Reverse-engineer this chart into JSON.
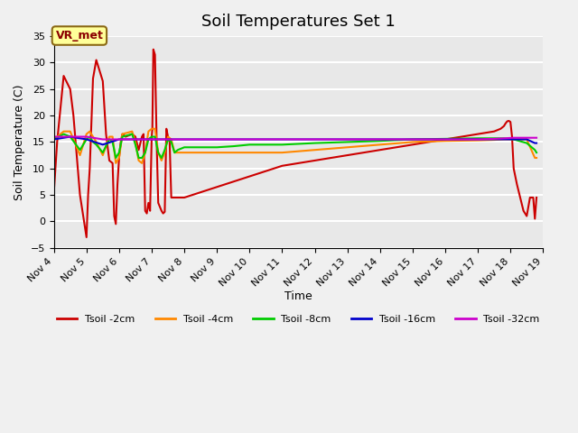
{
  "title": "Soil Temperatures Set 1",
  "xlabel": "Time",
  "ylabel": "Soil Temperature (C)",
  "ylim": [
    -5,
    35
  ],
  "xlim": [
    4,
    19
  ],
  "background_color": "#e8e8e8",
  "grid_color": "#ffffff",
  "annotation_label": "VR_met",
  "annotation_box_color": "#ffff99",
  "annotation_border_color": "#8B6914",
  "series": [
    {
      "name": "Tsoil -2cm",
      "color": "#cc0000",
      "x": [
        4.0,
        4.1,
        4.3,
        4.5,
        4.6,
        4.8,
        5.0,
        5.05,
        5.1,
        5.2,
        5.3,
        5.5,
        5.6,
        5.7,
        5.8,
        5.85,
        5.9,
        5.95,
        6.0,
        6.05,
        6.1,
        6.2,
        6.4,
        6.5,
        6.6,
        6.7,
        6.75,
        6.8,
        6.85,
        6.9,
        6.95,
        7.0,
        7.02,
        7.05,
        7.1,
        7.15,
        7.2,
        7.3,
        7.35,
        7.4,
        7.45,
        7.5,
        7.55,
        7.6,
        7.7,
        7.8,
        8.0,
        8.5,
        9.0,
        9.5,
        10.0,
        10.5,
        11.0,
        11.5,
        12.0,
        12.5,
        13.0,
        13.5,
        14.0,
        14.5,
        15.0,
        15.5,
        16.0,
        16.5,
        17.0,
        17.5,
        17.7,
        17.8,
        17.85,
        17.9,
        17.95,
        18.0,
        18.05,
        18.1,
        18.2,
        18.3,
        18.4,
        18.5,
        18.6,
        18.7,
        18.75,
        18.8
      ],
      "y": [
        5.5,
        15.0,
        27.5,
        25.0,
        20.0,
        5.0,
        -3.0,
        5.0,
        10.0,
        27.0,
        30.5,
        26.5,
        16.5,
        11.5,
        11.0,
        1.0,
        -0.5,
        7.0,
        12.0,
        15.0,
        16.5,
        16.0,
        16.5,
        16.0,
        13.5,
        16.0,
        16.5,
        2.0,
        1.5,
        3.5,
        2.0,
        16.0,
        17.5,
        32.5,
        31.5,
        15.5,
        3.5,
        2.0,
        1.5,
        1.8,
        17.5,
        16.0,
        15.0,
        4.5,
        4.5,
        4.5,
        4.5,
        5.5,
        6.5,
        7.5,
        8.5,
        9.5,
        10.5,
        11.0,
        11.5,
        12.0,
        12.5,
        13.0,
        13.5,
        14.0,
        14.5,
        15.0,
        15.5,
        16.0,
        16.5,
        17.0,
        17.5,
        18.0,
        18.5,
        18.9,
        19.0,
        18.8,
        16.0,
        10.0,
        7.0,
        4.5,
        2.0,
        1.0,
        4.5,
        4.5,
        0.5,
        4.5
      ]
    },
    {
      "name": "Tsoil -4cm",
      "color": "#ff8800",
      "x": [
        4.0,
        4.3,
        4.5,
        4.8,
        5.0,
        5.1,
        5.2,
        5.3,
        5.5,
        5.7,
        5.8,
        5.9,
        6.0,
        6.1,
        6.4,
        6.5,
        6.6,
        6.7,
        6.8,
        6.9,
        7.0,
        7.1,
        7.2,
        7.3,
        7.4,
        7.5,
        7.6,
        7.7,
        7.8,
        8.0,
        8.5,
        9.0,
        9.5,
        10.0,
        11.0,
        12.0,
        13.0,
        14.0,
        15.0,
        16.0,
        17.0,
        17.5,
        17.8,
        18.1,
        18.5,
        18.75,
        18.8
      ],
      "y": [
        15.5,
        17.0,
        17.0,
        12.5,
        16.5,
        17.0,
        16.0,
        15.0,
        12.5,
        16.0,
        16.0,
        11.0,
        12.0,
        16.5,
        17.0,
        15.0,
        11.5,
        11.0,
        13.0,
        17.0,
        17.5,
        17.5,
        13.0,
        11.5,
        13.0,
        16.0,
        15.5,
        13.0,
        13.0,
        13.0,
        13.0,
        13.0,
        13.0,
        13.0,
        13.0,
        13.5,
        14.0,
        14.5,
        15.0,
        15.2,
        15.3,
        15.4,
        15.5,
        15.5,
        15.5,
        12.0,
        12.0
      ]
    },
    {
      "name": "Tsoil -8cm",
      "color": "#00cc00",
      "x": [
        4.0,
        4.3,
        4.5,
        4.8,
        5.0,
        5.1,
        5.2,
        5.3,
        5.5,
        5.7,
        5.8,
        5.9,
        6.0,
        6.1,
        6.4,
        6.5,
        6.6,
        6.7,
        6.8,
        6.9,
        7.0,
        7.1,
        7.2,
        7.3,
        7.4,
        7.5,
        7.6,
        7.7,
        7.8,
        8.0,
        8.5,
        9.0,
        9.5,
        10.0,
        11.0,
        12.0,
        13.0,
        14.0,
        15.0,
        16.0,
        17.0,
        17.5,
        17.8,
        18.1,
        18.5,
        18.75,
        18.8
      ],
      "y": [
        15.5,
        16.5,
        16.0,
        13.5,
        15.5,
        16.0,
        15.0,
        14.5,
        13.0,
        15.5,
        15.0,
        12.0,
        13.0,
        16.0,
        16.5,
        14.5,
        12.0,
        12.0,
        13.0,
        15.5,
        16.0,
        16.0,
        13.0,
        12.0,
        13.5,
        15.5,
        15.0,
        13.0,
        13.5,
        14.0,
        14.0,
        14.0,
        14.2,
        14.5,
        14.5,
        14.8,
        15.0,
        15.2,
        15.5,
        15.6,
        15.7,
        15.7,
        15.7,
        15.5,
        14.8,
        13.5,
        13.0
      ]
    },
    {
      "name": "Tsoil -16cm",
      "color": "#0000cc",
      "x": [
        4.0,
        4.5,
        5.0,
        5.5,
        6.0,
        6.5,
        7.0,
        7.5,
        8.0,
        8.5,
        9.0,
        9.5,
        10.0,
        11.0,
        12.0,
        13.0,
        14.0,
        15.0,
        16.0,
        17.0,
        17.5,
        17.8,
        18.1,
        18.5,
        18.75,
        18.8
      ],
      "y": [
        15.5,
        16.0,
        15.5,
        14.5,
        15.5,
        15.5,
        15.5,
        15.5,
        15.5,
        15.5,
        15.5,
        15.5,
        15.5,
        15.5,
        15.5,
        15.5,
        15.5,
        15.5,
        15.5,
        15.5,
        15.5,
        15.5,
        15.5,
        15.5,
        14.8,
        14.8
      ]
    },
    {
      "name": "Tsoil -32cm",
      "color": "#cc00cc",
      "x": [
        4.0,
        4.5,
        5.0,
        5.5,
        6.0,
        6.5,
        7.0,
        7.5,
        8.0,
        8.5,
        9.0,
        9.5,
        10.0,
        11.0,
        12.0,
        13.0,
        14.0,
        15.0,
        16.0,
        17.0,
        17.5,
        17.8,
        18.1,
        18.5,
        18.75,
        18.8
      ],
      "y": [
        16.0,
        16.0,
        16.0,
        15.5,
        15.5,
        15.5,
        15.5,
        15.5,
        15.5,
        15.5,
        15.5,
        15.5,
        15.5,
        15.5,
        15.5,
        15.5,
        15.5,
        15.5,
        15.5,
        15.5,
        15.6,
        15.7,
        15.8,
        15.8,
        15.8,
        15.8
      ]
    }
  ],
  "xticks": [
    4,
    5,
    6,
    7,
    8,
    9,
    10,
    11,
    12,
    13,
    14,
    15,
    16,
    17,
    18,
    19
  ],
  "xtick_labels": [
    "Nov 4",
    "Nov 5",
    "Nov 6",
    "Nov 7",
    "Nov 8",
    "Nov 9",
    "Nov 10",
    "Nov 11",
    "Nov 12",
    "Nov 13",
    "Nov 14",
    "Nov 15",
    "Nov 16",
    "Nov 17",
    "Nov 18",
    "Nov 19"
  ],
  "yticks": [
    -5,
    0,
    5,
    10,
    15,
    20,
    25,
    30,
    35
  ]
}
